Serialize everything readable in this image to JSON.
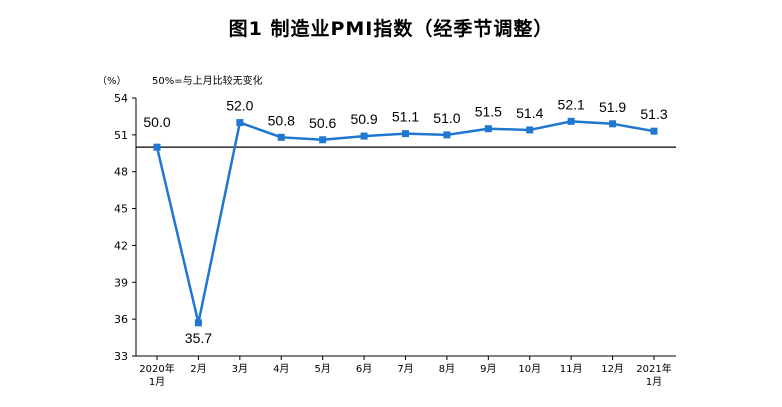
{
  "title": "图1 制造业PMI指数（经季节调整）",
  "unit_label": "（%）",
  "note": "50%=与上月比较无变化",
  "chart_data": {
    "type": "line",
    "title": "图1 制造业PMI指数（经季节调整）",
    "ylabel": "（%）",
    "reference_line": 50,
    "ylim": [
      33,
      54
    ],
    "yticks": [
      33,
      36,
      39,
      42,
      45,
      48,
      51,
      54
    ],
    "categories": [
      [
        "2020年",
        "1月"
      ],
      [
        "2月"
      ],
      [
        "3月"
      ],
      [
        "4月"
      ],
      [
        "5月"
      ],
      [
        "6月"
      ],
      [
        "7月"
      ],
      [
        "8月"
      ],
      [
        "9月"
      ],
      [
        "10月"
      ],
      [
        "11月"
      ],
      [
        "12月"
      ],
      [
        "2021年",
        "1月"
      ]
    ],
    "values": [
      50.0,
      35.7,
      52.0,
      50.8,
      50.6,
      50.9,
      51.1,
      51.0,
      51.5,
      51.4,
      52.1,
      51.9,
      51.3
    ],
    "data_labels": [
      "50.0",
      "35.7",
      "52.0",
      "50.8",
      "50.6",
      "50.9",
      "51.1",
      "51.0",
      "51.5",
      "51.4",
      "52.1",
      "51.9",
      "51.3"
    ],
    "line_color": "#1f77d0",
    "marker": "square"
  }
}
